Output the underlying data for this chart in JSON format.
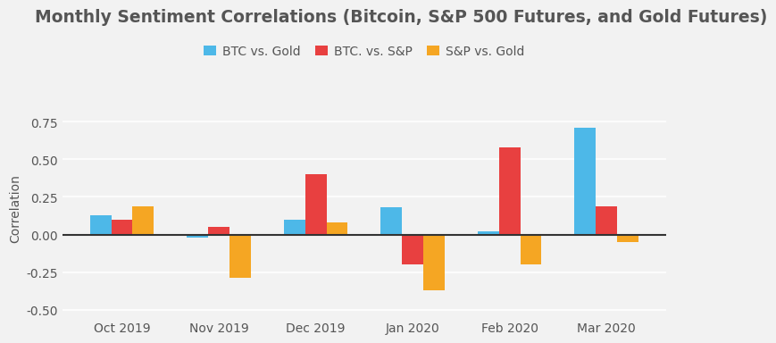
{
  "title": "Monthly Sentiment Correlations (Bitcoin, S&P 500 Futures, and Gold Futures)",
  "ylabel": "Correlation",
  "categories": [
    "Oct 2019",
    "Nov 2019",
    "Dec 2019",
    "Jan 2020",
    "Feb 2020",
    "Mar 2020"
  ],
  "series": {
    "BTC vs. Gold": [
      0.13,
      -0.02,
      0.1,
      0.18,
      0.02,
      0.71
    ],
    "BTC. vs. S&P": [
      0.1,
      0.05,
      0.4,
      -0.2,
      0.58,
      0.19
    ],
    "S&P vs. Gold": [
      0.19,
      -0.29,
      0.08,
      -0.37,
      -0.2,
      -0.05
    ]
  },
  "colors": {
    "BTC vs. Gold": "#4db8e8",
    "BTC. vs. S&P": "#e84040",
    "S&P vs. Gold": "#f5a623"
  },
  "legend_labels": [
    "BTC vs. Gold",
    "BTC. vs. S&P",
    "S&P vs. Gold"
  ],
  "ylim": [
    -0.55,
    0.9
  ],
  "yticks": [
    -0.5,
    -0.25,
    0.0,
    0.25,
    0.5,
    0.75
  ],
  "ytick_labels": [
    "-0.50",
    "-0.25",
    "0.00",
    "0.25",
    "0.50",
    "0.75"
  ],
  "background_color": "#f2f2f2",
  "grid_color": "#ffffff",
  "title_color": "#555555",
  "bar_width": 0.22,
  "title_fontsize": 13.5,
  "axis_fontsize": 10,
  "legend_fontsize": 10,
  "tick_fontsize": 10
}
